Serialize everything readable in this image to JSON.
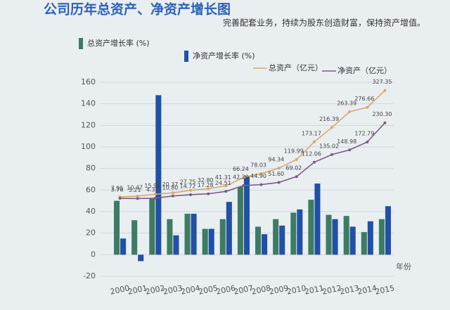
{
  "chart_data": {
    "type": "bar",
    "title": "公司历年总资产、净资产增长图",
    "subtitle": "完善配套业务，持续为股东创造财富，保持资产增值。",
    "x_label": "年份",
    "categories": [
      "2000",
      "2001",
      "2002",
      "2003",
      "2004",
      "2005",
      "2006",
      "2007",
      "2008",
      "2009",
      "2010",
      "2011",
      "2012",
      "2013",
      "2014",
      "2015"
    ],
    "ylim": [
      -20,
      160
    ],
    "yticks": [
      -20,
      0,
      20,
      40,
      60,
      80,
      100,
      120,
      140,
      160
    ],
    "y2lim": [
      -230,
      352
    ],
    "grid": true,
    "series": [
      {
        "name": "总资产增长率 (%)",
        "type": "bar",
        "color": "#3d7c62",
        "values": [
          50,
          32,
          52,
          33,
          38,
          24,
          33,
          63,
          26,
          33,
          39,
          51,
          37,
          36,
          21,
          33
        ]
      },
      {
        "name": "净资产增长率 (%)",
        "type": "bar",
        "color": "#2150a6",
        "values": [
          15,
          -6,
          148,
          18,
          38,
          24,
          49,
          73,
          19,
          27,
          42,
          66,
          33,
          26,
          31,
          45
        ]
      },
      {
        "name": "总资产（亿元）",
        "type": "line",
        "axis": "y2",
        "color": "#d8a86c",
        "values": [
          7.95,
          10.47,
          15.98,
          20.37,
          27.75,
          32.8,
          41.31,
          66.24,
          78.03,
          94.34,
          119.99,
          173.17,
          216.39,
          263.39,
          276.66,
          327.35
        ],
        "value_labels": [
          "7.95",
          "10.47",
          "15.98",
          "20.37",
          "27.75",
          "32.80",
          "41.31",
          "66.24",
          "78.03",
          "94.34",
          "119.99",
          "173.17",
          "216.39",
          "263.39",
          "276.66",
          "327.35"
        ]
      },
      {
        "name": "净资产（亿元）",
        "type": "line",
        "axis": "y2",
        "color": "#7b5a86",
        "values": [
          3.76,
          3.21,
          4.35,
          10.8,
          14.72,
          17.28,
          24.51,
          42.29,
          44.9,
          51.6,
          69.02,
          112.06,
          135.02,
          148.98,
          172.79,
          230.3
        ],
        "value_labels": [
          "3.76",
          "3.21",
          "4.35",
          "10.80",
          "14.72",
          "17.28",
          "24.51",
          "42.29",
          "44.90",
          "51.60",
          "69.02",
          "112.06",
          "135.02",
          "148.98",
          "172.79",
          "230.30"
        ]
      }
    ]
  }
}
